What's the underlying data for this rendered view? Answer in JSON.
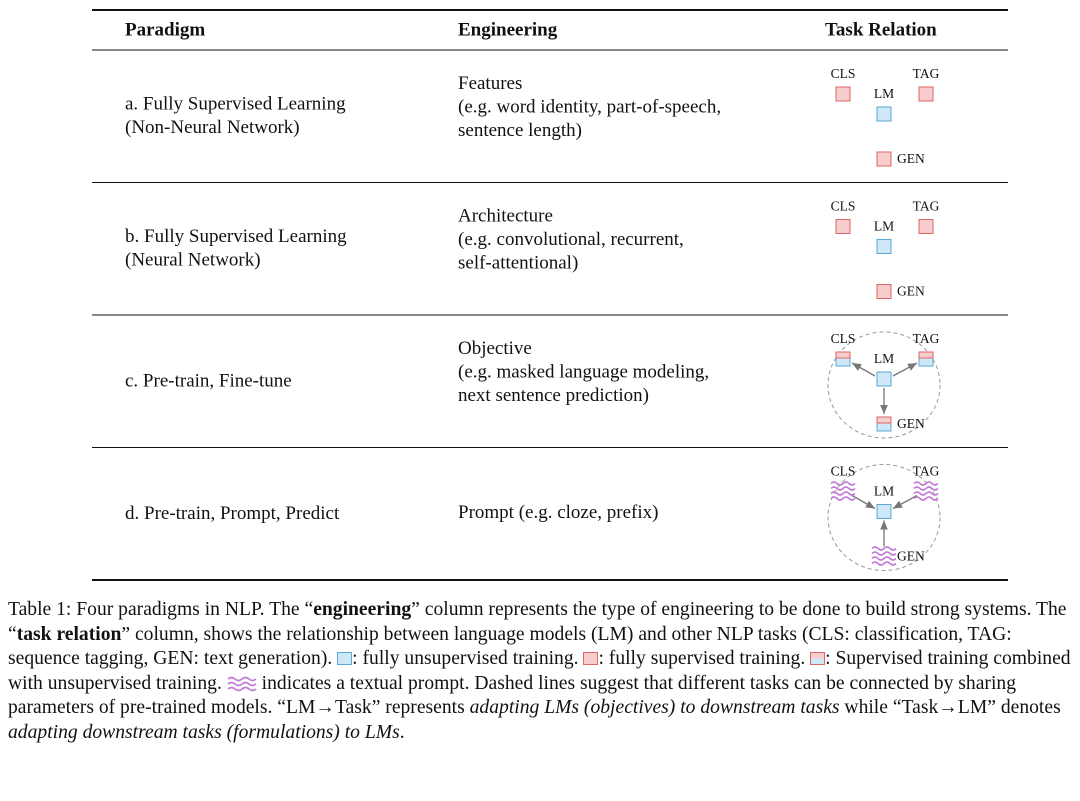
{
  "table": {
    "header": [
      "Paradigm",
      "Engineering",
      "Task Relation"
    ],
    "rows": [
      {
        "paradigm": [
          "a. Fully Supervised Learning",
          "(Non-Neural Network)"
        ],
        "engineering": [
          "Features",
          "(e.g. word identity, part-of-speech,",
          "sentence length)"
        ]
      },
      {
        "paradigm": [
          "b. Fully Supervised Learning",
          "(Neural Network)"
        ],
        "engineering": [
          "Architecture",
          "(e.g. convolutional, recurrent,",
          "self-attentional)"
        ]
      },
      {
        "paradigm": [
          "c. Pre-train, Fine-tune"
        ],
        "engineering": [
          "Objective",
          "(e.g. masked language modeling,",
          "next sentence prediction)"
        ]
      },
      {
        "paradigm": [
          "d. Pre-train, Prompt, Predict"
        ],
        "engineering": [
          "Prompt (e.g. cloze, prefix)"
        ]
      }
    ],
    "diagram_labels": {
      "cls": "CLS",
      "tag": "TAG",
      "lm": "LM",
      "gen": "GEN"
    }
  },
  "caption": {
    "parts": [
      "Table 1: Four paradigms in NLP. The “",
      "engineering",
      "” column represents the type of engineering to be done to build strong systems. The “",
      "task relation",
      "” column, shows the relationship between language models (LM) and other NLP tasks (CLS: classification, TAG: sequence tagging, GEN: text generation). ",
      ": fully unsupervised training. ",
      ": fully supervised training. ",
      ": Supervised training combined with unsupervised training. ",
      " indicates a textual prompt. Dashed lines suggest that different tasks can be connected by sharing parameters of pre-trained models. “LM→Task” represents ",
      "adapting LMs (objectives) to downstream tasks",
      " while “Task→LM” denotes ",
      "adapting downstream tasks (formulations) to LMs",
      "."
    ]
  }
}
